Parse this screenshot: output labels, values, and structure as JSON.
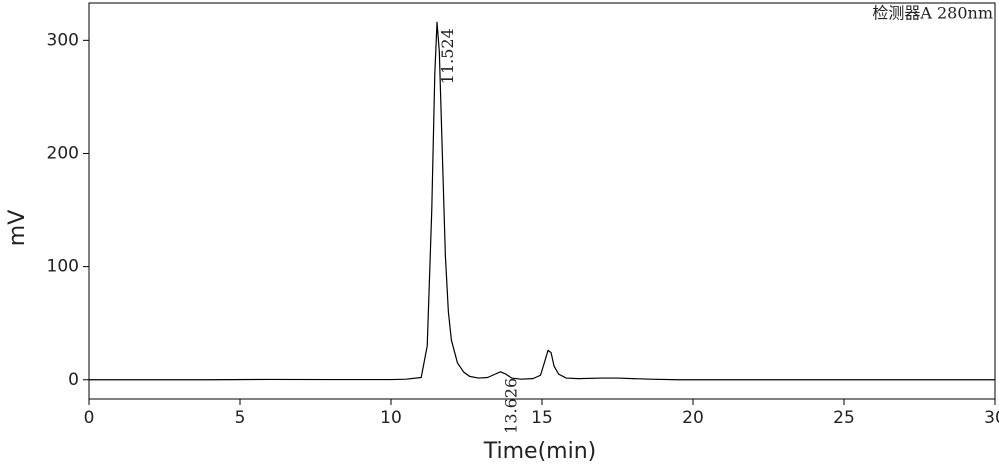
{
  "chart_data": {
    "type": "line",
    "detector_label": "检测器A 280nm",
    "x_label": "Time(min)",
    "y_label": "mV",
    "x": [
      0,
      2,
      4,
      6,
      8,
      10,
      10.5,
      11.0,
      11.2,
      11.35,
      11.45,
      11.524,
      11.6,
      11.7,
      11.8,
      11.9,
      12.0,
      12.2,
      12.4,
      12.6,
      12.9,
      13.2,
      13.45,
      13.626,
      13.8,
      14.0,
      14.3,
      14.7,
      14.95,
      15.1,
      15.2,
      15.3,
      15.4,
      15.55,
      15.8,
      16.2,
      17.0,
      17.5,
      18.0,
      18.6,
      19.5,
      22,
      25,
      28,
      30
    ],
    "values": [
      0,
      0,
      0,
      0.3,
      0.2,
      0.2,
      0.5,
      2,
      30,
      150,
      270,
      316,
      290,
      200,
      110,
      60,
      35,
      15,
      7,
      3,
      1.5,
      2,
      5,
      7,
      5,
      1.5,
      0.5,
      1,
      4,
      17,
      26,
      24,
      12,
      5,
      1.5,
      1,
      1.5,
      1.5,
      1,
      0.5,
      0,
      0,
      0,
      0,
      0
    ],
    "color": "#000000",
    "xlim": [
      0,
      30
    ],
    "xticks": [
      0,
      5,
      10,
      15,
      20,
      25,
      30
    ],
    "ylim": [
      -17,
      333
    ],
    "yticks": [
      0,
      100,
      200,
      300
    ],
    "annotations": [
      {
        "text": "11.524",
        "x": 11.524,
        "y": 316
      },
      {
        "text": "13.626",
        "x": 13.626,
        "y": 7
      }
    ]
  }
}
